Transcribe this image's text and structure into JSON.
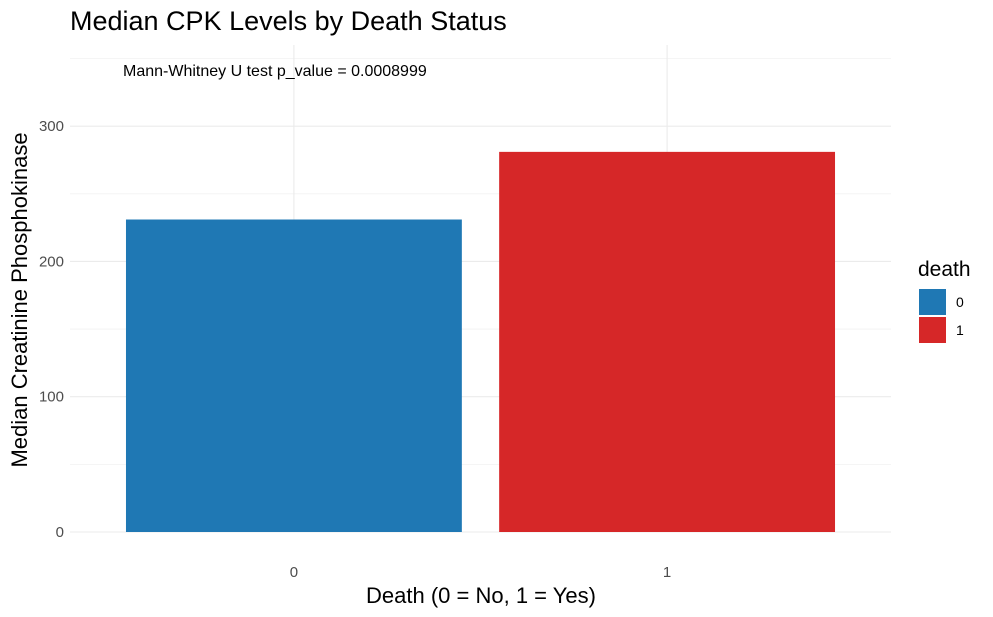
{
  "chart_data": {
    "type": "bar",
    "title": "Median CPK Levels by Death Status",
    "xlabel": "Death (0 = No, 1 = Yes)",
    "ylabel": "Median Creatinine Phosphokinase",
    "categories": [
      "0",
      "1"
    ],
    "values": [
      231,
      281
    ],
    "colors": [
      "#1f78b4",
      "#d62728"
    ],
    "ylim": [
      0,
      360
    ],
    "yticks": [
      0,
      100,
      200,
      300
    ],
    "grid": true,
    "annotation": "Mann-Whitney U test p_value = 0.0008999",
    "legend": {
      "title": "death",
      "placement": "right",
      "entries": [
        {
          "label": "0",
          "color": "#1f78b4"
        },
        {
          "label": "1",
          "color": "#d62728"
        }
      ]
    }
  }
}
